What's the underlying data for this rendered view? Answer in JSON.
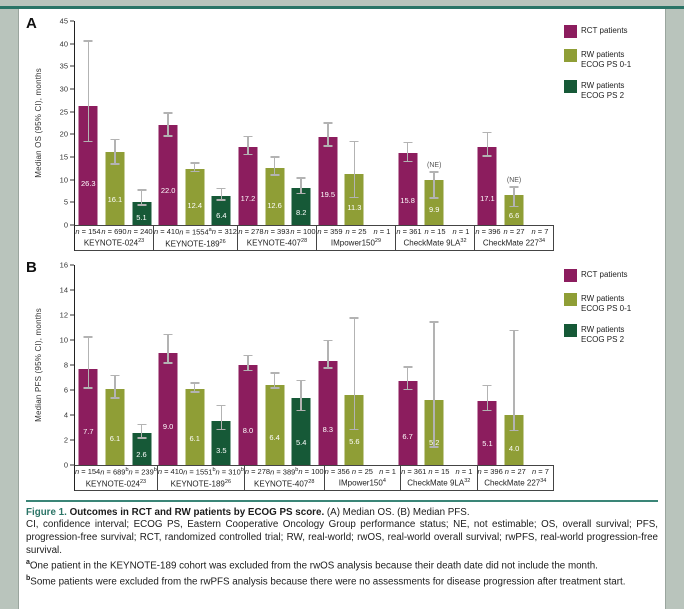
{
  "page": {
    "panel_a_letter": "A",
    "panel_b_letter": "B"
  },
  "legend": {
    "items": [
      {
        "name": "rct-patients",
        "color": "#8c1d5e",
        "lines": [
          "RCT patients"
        ]
      },
      {
        "name": "rw-patients-ecog-ps-0-1",
        "color": "#8f9e36",
        "lines": [
          "RW patients",
          "ECOG PS 0-1"
        ]
      },
      {
        "name": "rw-patients-ecog-ps-2",
        "color": "#165937",
        "lines": [
          "RW patients",
          "ECOG PS 2"
        ]
      }
    ]
  },
  "chart_data": [
    {
      "type": "bar",
      "panel": "A",
      "ylabel": "Median OS (95% CI), months",
      "ylim": [
        0,
        45
      ],
      "ytick_step": 5,
      "grid": false,
      "legend_position": "top-right",
      "series_names": [
        "RCT patients",
        "RW patients ECOG PS 0-1",
        "RW patients ECOG PS 2"
      ],
      "groups": [
        {
          "study": "KEYNOTE-024",
          "ref": "23",
          "bars": [
            {
              "value": 26.3,
              "label": "26.3",
              "ci": [
                18.3,
                40.4
              ],
              "n": "n = 154"
            },
            {
              "value": 16.1,
              "label": "16.1",
              "ci": [
                13.3,
                18.7
              ],
              "n": "n = 690"
            },
            {
              "value": 5.1,
              "label": "5.1",
              "ci": [
                4.2,
                7.6
              ],
              "n": "n = 240"
            }
          ]
        },
        {
          "study": "KEYNOTE-189",
          "ref": "26",
          "bars": [
            {
              "value": 22.0,
              "label": "22.0",
              "ci": [
                19.5,
                24.5
              ],
              "n": "n = 410"
            },
            {
              "value": 12.4,
              "label": "12.4",
              "ci": [
                11.6,
                13.5
              ],
              "n": "n = 1554",
              "n_sup": "a"
            },
            {
              "value": 6.4,
              "label": "6.4",
              "ci": [
                5.4,
                7.9
              ],
              "n": "n = 312"
            }
          ]
        },
        {
          "study": "KEYNOTE-407",
          "ref": "28",
          "bars": [
            {
              "value": 17.2,
              "label": "17.2",
              "ci": [
                15.4,
                19.4
              ],
              "n": "n = 278"
            },
            {
              "value": 12.6,
              "label": "12.6",
              "ci": [
                10.9,
                14.8
              ],
              "n": "n = 393"
            },
            {
              "value": 8.2,
              "label": "8.2",
              "ci": [
                6.8,
                10.2
              ],
              "n": "n = 100"
            }
          ]
        },
        {
          "study": "IMpower150",
          "ref": "29",
          "bars": [
            {
              "value": 19.5,
              "label": "19.5",
              "ci": [
                17.3,
                22.3
              ],
              "n": "n = 359"
            },
            {
              "value": 11.3,
              "label": "11.3",
              "ci": [
                5.9,
                18.3
              ],
              "n": "n = 25"
            },
            {
              "value": null,
              "n": "n = 1"
            }
          ]
        },
        {
          "study": "CheckMate 9LA",
          "ref": "32",
          "bars": [
            {
              "value": 15.8,
              "label": "15.8",
              "ci": [
                13.8,
                18.0
              ],
              "n": "n = 361"
            },
            {
              "value": 9.9,
              "label": "9.9",
              "ci": [
                5.8,
                null
              ],
              "ne": "(NE)",
              "n": "n = 15"
            },
            {
              "value": null,
              "n": "n = 1"
            }
          ]
        },
        {
          "study": "CheckMate 227",
          "ref": "34",
          "bars": [
            {
              "value": 17.1,
              "label": "17.1",
              "ci": [
                15.1,
                20.2
              ],
              "n": "n = 396"
            },
            {
              "value": 6.6,
              "label": "6.6",
              "ci": [
                3.9,
                null
              ],
              "ne": "(NE)",
              "n": "n = 27"
            },
            {
              "value": null,
              "n": "n = 7"
            }
          ]
        }
      ]
    },
    {
      "type": "bar",
      "panel": "B",
      "ylabel": "Median PFS (95% CI), months",
      "ylim": [
        0,
        16
      ],
      "ytick_step": 2,
      "grid": false,
      "legend_position": "top-right",
      "series_names": [
        "RCT patients",
        "RW patients ECOG PS 0-1",
        "RW patients ECOG PS 2"
      ],
      "groups": [
        {
          "study": "KEYNOTE-024",
          "ref": "23",
          "bars": [
            {
              "value": 7.7,
              "label": "7.7",
              "ci": [
                6.1,
                10.2
              ],
              "n": "n = 154"
            },
            {
              "value": 6.1,
              "label": "6.1",
              "ci": [
                5.3,
                7.1
              ],
              "n": "n = 689",
              "n_sup": "b"
            },
            {
              "value": 2.6,
              "label": "2.6",
              "ci": [
                2.1,
                3.2
              ],
              "n": "n = 239",
              "n_sup": "b"
            }
          ]
        },
        {
          "study": "KEYNOTE-189",
          "ref": "26",
          "bars": [
            {
              "value": 9.0,
              "label": "9.0",
              "ci": [
                8.1,
                10.4
              ],
              "n": "n = 410"
            },
            {
              "value": 6.1,
              "label": "6.1",
              "ci": [
                5.8,
                6.5
              ],
              "n": "n = 1551",
              "n_sup": "b"
            },
            {
              "value": 3.5,
              "label": "3.5",
              "ci": [
                2.8,
                4.7
              ],
              "n": "n = 310",
              "n_sup": "b"
            }
          ]
        },
        {
          "study": "KEYNOTE-407",
          "ref": "28",
          "bars": [
            {
              "value": 8.0,
              "label": "8.0",
              "ci": [
                7.5,
                8.7
              ],
              "n": "n = 278"
            },
            {
              "value": 6.4,
              "label": "6.4",
              "ci": [
                6.1,
                7.3
              ],
              "n": "n = 389",
              "n_sup": "b"
            },
            {
              "value": 5.4,
              "label": "5.4",
              "ci": [
                4.3,
                6.7
              ],
              "n": "n = 100"
            }
          ]
        },
        {
          "study": "IMpower150",
          "ref": "4",
          "bars": [
            {
              "value": 8.3,
              "label": "8.3",
              "ci": [
                7.7,
                9.9
              ],
              "n": "n = 356"
            },
            {
              "value": 5.6,
              "label": "5.6",
              "ci": [
                2.8,
                11.7
              ],
              "n": "n = 25"
            },
            {
              "value": null,
              "n": "n = 1"
            }
          ]
        },
        {
          "study": "CheckMate 9LA",
          "ref": "32",
          "bars": [
            {
              "value": 6.7,
              "label": "6.7",
              "ci": [
                6.0,
                7.8
              ],
              "n": "n = 361"
            },
            {
              "value": 5.2,
              "label": "5.2",
              "ci": [
                1.4,
                11.4
              ],
              "n": "n = 15"
            },
            {
              "value": null,
              "n": "n = 1"
            }
          ]
        },
        {
          "study": "CheckMate 227",
          "ref": "34",
          "bars": [
            {
              "value": 5.1,
              "label": "5.1",
              "ci": [
                4.3,
                6.3
              ],
              "n": "n = 396"
            },
            {
              "value": 4.0,
              "label": "4.0",
              "ci": [
                2.7,
                10.7
              ],
              "n": "n = 27"
            },
            {
              "value": null,
              "n": "n = 7"
            }
          ]
        }
      ]
    }
  ],
  "caption": {
    "figure_label": "Figure 1.",
    "figure_title": "Outcomes in RCT and RW patients by ECOG PS score.",
    "panels_note": "(A) Median OS. (B) Median PFS.",
    "abbreviations": "CI, confidence interval; ECOG PS, Eastern Cooperative Oncology Group performance status; NE, not estimable; OS, overall survival; PFS, progression-free survival; RCT, randomized controlled trial; RW, real-world; rwOS, real-world overall survival; rwPFS, real-world progression-free survival.",
    "footnote_a_marker": "a",
    "footnote_a_text": "One patient in the KEYNOTE-189 cohort was excluded from the rwOS analysis because their death date did not include the month.",
    "footnote_b_marker": "b",
    "footnote_b_text": "Some patients were excluded from the rwPFS analysis because there were no assessments for disease progression after treatment start."
  }
}
